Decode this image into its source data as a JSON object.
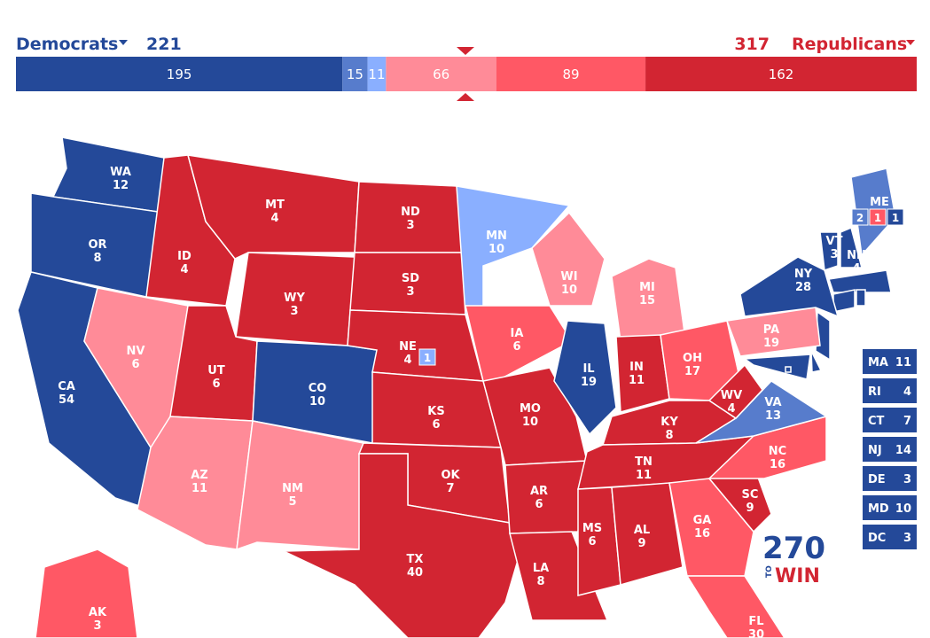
{
  "header": {
    "dem_label": "Democrats",
    "dem_total": 221,
    "rep_total": 317,
    "rep_label": "Republicans"
  },
  "bar": {
    "segments": [
      {
        "value": 195,
        "color": "#244999"
      },
      {
        "value": 15,
        "color": "#577ccc"
      },
      {
        "value": 11,
        "color": "#8aafff"
      },
      {
        "value": 66,
        "color": "#ff8b98"
      },
      {
        "value": 89,
        "color": "#ff5865"
      },
      {
        "value": 162,
        "color": "#d22532"
      }
    ]
  },
  "states": [
    {
      "abbr": "WA",
      "votes": 12,
      "color": "#244999"
    },
    {
      "abbr": "OR",
      "votes": 8,
      "color": "#244999"
    },
    {
      "abbr": "CA",
      "votes": 54,
      "color": "#244999"
    },
    {
      "abbr": "ID",
      "votes": 4,
      "color": "#d22532"
    },
    {
      "abbr": "NV",
      "votes": 6,
      "color": "#ff8b98"
    },
    {
      "abbr": "MT",
      "votes": 4,
      "color": "#d22532"
    },
    {
      "abbr": "WY",
      "votes": 3,
      "color": "#d22532"
    },
    {
      "abbr": "UT",
      "votes": 6,
      "color": "#d22532"
    },
    {
      "abbr": "AZ",
      "votes": 11,
      "color": "#ff8b98"
    },
    {
      "abbr": "CO",
      "votes": 10,
      "color": "#244999"
    },
    {
      "abbr": "NM",
      "votes": 5,
      "color": "#ff8b98"
    },
    {
      "abbr": "ND",
      "votes": 3,
      "color": "#d22532"
    },
    {
      "abbr": "SD",
      "votes": 3,
      "color": "#d22532"
    },
    {
      "abbr": "NE",
      "votes": 4,
      "color": "#d22532",
      "districts": [
        {
          "votes": 1,
          "color": "#8aafff"
        }
      ]
    },
    {
      "abbr": "KS",
      "votes": 6,
      "color": "#d22532"
    },
    {
      "abbr": "OK",
      "votes": 7,
      "color": "#d22532"
    },
    {
      "abbr": "TX",
      "votes": 40,
      "color": "#d22532"
    },
    {
      "abbr": "MN",
      "votes": 10,
      "color": "#8aafff"
    },
    {
      "abbr": "IA",
      "votes": 6,
      "color": "#ff5865"
    },
    {
      "abbr": "MO",
      "votes": 10,
      "color": "#d22532"
    },
    {
      "abbr": "AR",
      "votes": 6,
      "color": "#d22532"
    },
    {
      "abbr": "LA",
      "votes": 8,
      "color": "#d22532"
    },
    {
      "abbr": "WI",
      "votes": 10,
      "color": "#ff8b98"
    },
    {
      "abbr": "IL",
      "votes": 19,
      "color": "#244999"
    },
    {
      "abbr": "MI",
      "votes": 15,
      "color": "#ff8b98"
    },
    {
      "abbr": "IN",
      "votes": 11,
      "color": "#d22532"
    },
    {
      "abbr": "OH",
      "votes": 17,
      "color": "#ff5865"
    },
    {
      "abbr": "KY",
      "votes": 8,
      "color": "#d22532"
    },
    {
      "abbr": "TN",
      "votes": 11,
      "color": "#d22532"
    },
    {
      "abbr": "MS",
      "votes": 6,
      "color": "#d22532"
    },
    {
      "abbr": "AL",
      "votes": 9,
      "color": "#d22532"
    },
    {
      "abbr": "GA",
      "votes": 16,
      "color": "#ff5865"
    },
    {
      "abbr": "FL",
      "votes": 30,
      "color": "#ff5865"
    },
    {
      "abbr": "SC",
      "votes": 9,
      "color": "#d22532"
    },
    {
      "abbr": "NC",
      "votes": 16,
      "color": "#ff5865"
    },
    {
      "abbr": "VA",
      "votes": 13,
      "color": "#577ccc"
    },
    {
      "abbr": "WV",
      "votes": 4,
      "color": "#d22532"
    },
    {
      "abbr": "PA",
      "votes": 19,
      "color": "#ff8b98"
    },
    {
      "abbr": "NY",
      "votes": 28,
      "color": "#244999"
    },
    {
      "abbr": "VT",
      "votes": 3,
      "color": "#244999"
    },
    {
      "abbr": "NH",
      "votes": 4,
      "color": "#244999"
    },
    {
      "abbr": "ME",
      "color": "#577ccc",
      "districts": [
        {
          "votes": 2,
          "color": "#577ccc"
        },
        {
          "votes": 1,
          "color": "#ff5865"
        },
        {
          "votes": 1,
          "color": "#244999"
        }
      ]
    },
    {
      "abbr": "AK",
      "votes": 3,
      "color": "#ff5865"
    }
  ],
  "small_states": [
    {
      "abbr": "MA",
      "votes": 11,
      "color": "#244999"
    },
    {
      "abbr": "RI",
      "votes": 4,
      "color": "#244999"
    },
    {
      "abbr": "CT",
      "votes": 7,
      "color": "#244999"
    },
    {
      "abbr": "NJ",
      "votes": 14,
      "color": "#244999"
    },
    {
      "abbr": "DE",
      "votes": 3,
      "color": "#244999"
    },
    {
      "abbr": "MD",
      "votes": 10,
      "color": "#244999"
    },
    {
      "abbr": "DC",
      "votes": 3,
      "color": "#244999"
    }
  ],
  "logo": {
    "number": "270",
    "to": "TO",
    "win": "WIN"
  }
}
